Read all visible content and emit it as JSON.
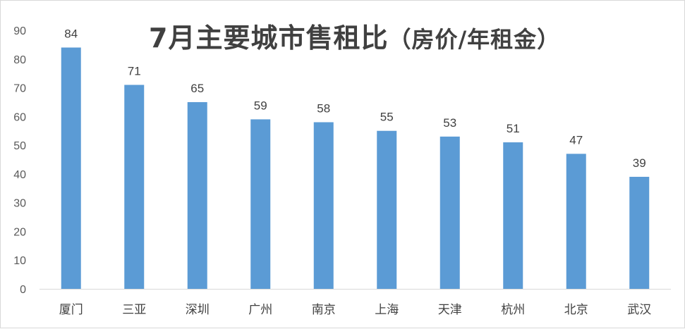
{
  "chart_data": {
    "type": "bar",
    "title": "7月主要城市售租比",
    "subtitle": "（房价/年租金）",
    "categories": [
      "厦门",
      "三亚",
      "深圳",
      "广州",
      "南京",
      "上海",
      "天津",
      "杭州",
      "北京",
      "武汉"
    ],
    "values": [
      84,
      71,
      65,
      59,
      58,
      55,
      53,
      51,
      47,
      39
    ],
    "ylim": [
      0,
      90
    ],
    "yticks": [
      0,
      10,
      20,
      30,
      40,
      50,
      60,
      70,
      80,
      90
    ],
    "xlabel": "",
    "ylabel": "",
    "grid": false,
    "legend": "none",
    "bar_color": "#5b9bd5",
    "axis_color": "#d9d9d9"
  }
}
